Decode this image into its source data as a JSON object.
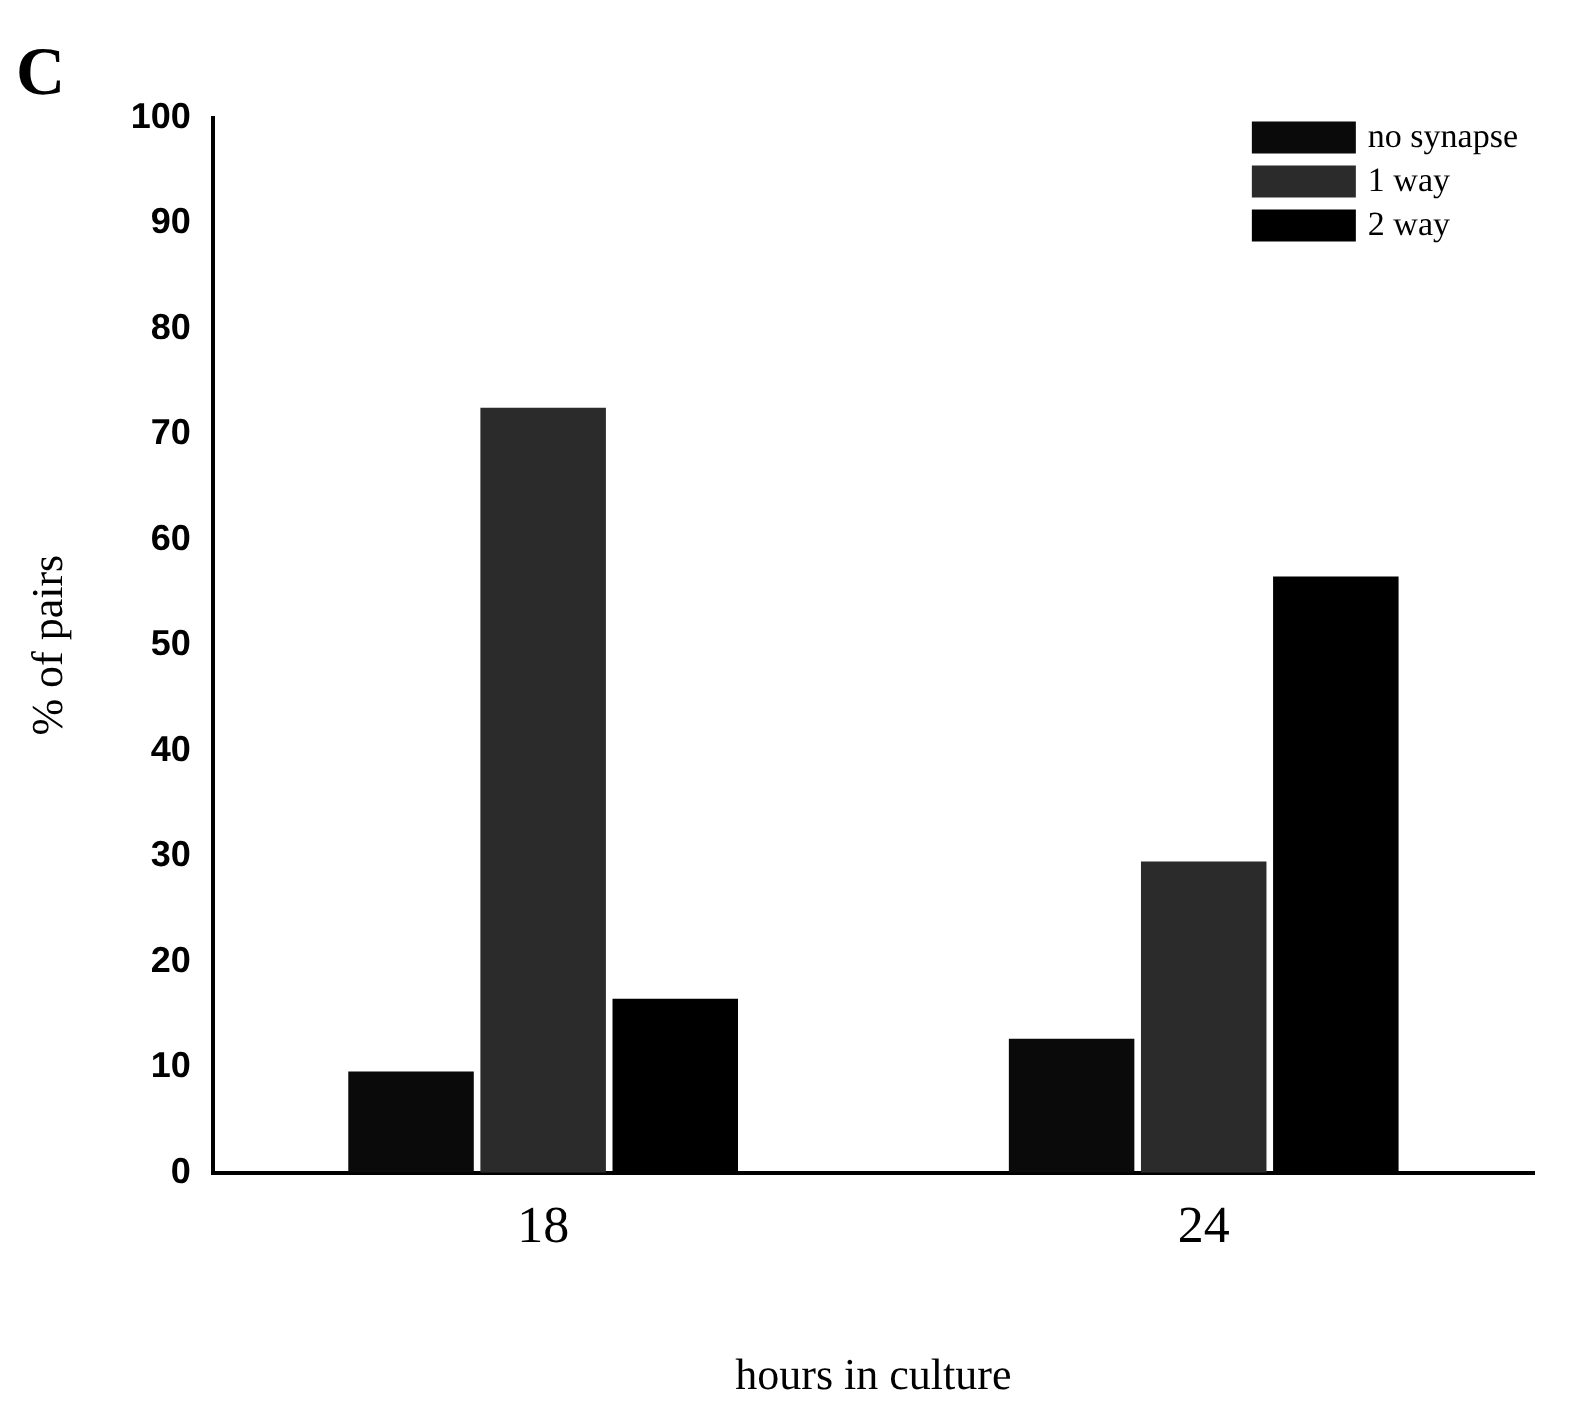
{
  "chart_data": {
    "type": "bar",
    "title": "C",
    "categories": [
      "18",
      "24"
    ],
    "series": [
      {
        "name": "no synapse",
        "color": "#0a0a0a",
        "values": [
          9.6,
          12.7
        ]
      },
      {
        "name": "1 way",
        "color": "#2b2b2b",
        "values": [
          72.5,
          29.5
        ]
      },
      {
        "name": "2 way",
        "color": "#000000",
        "values": [
          16.5,
          56.5
        ]
      }
    ],
    "xlabel": "hours in culture",
    "ylabel": "% of pairs",
    "ylim": [
      0,
      100
    ],
    "yticks": [
      0,
      10,
      20,
      30,
      40,
      50,
      60,
      70,
      80,
      90,
      100
    ],
    "grid": false,
    "legend": "top right"
  }
}
